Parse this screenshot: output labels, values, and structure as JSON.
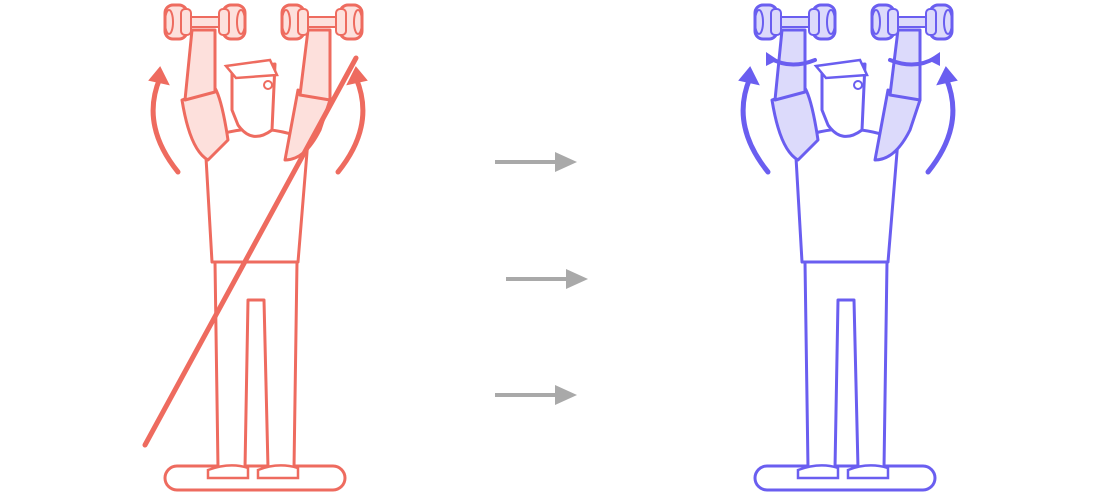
{
  "colors": {
    "incorrect_stroke": "#ee6b5f",
    "incorrect_fill": "#fde0dc",
    "correct_stroke": "#6a5ef0",
    "correct_fill": "#dcdafb",
    "arrow": "#a9a9a9",
    "background": "#ffffff"
  },
  "figures": [
    {
      "id": "incorrect",
      "variant": "crossed-out",
      "rotation_arrows": "outward-up"
    },
    {
      "id": "correct",
      "variant": "plain",
      "rotation_arrows": "inward-up-with-wrist-twist"
    }
  ],
  "transition_arrows": [
    {
      "direction": "right"
    },
    {
      "direction": "right"
    },
    {
      "direction": "right"
    }
  ],
  "icons": [
    "person-dumbbell-press",
    "rotation-arrow-icon",
    "strike-line",
    "arrow-right-icon"
  ]
}
